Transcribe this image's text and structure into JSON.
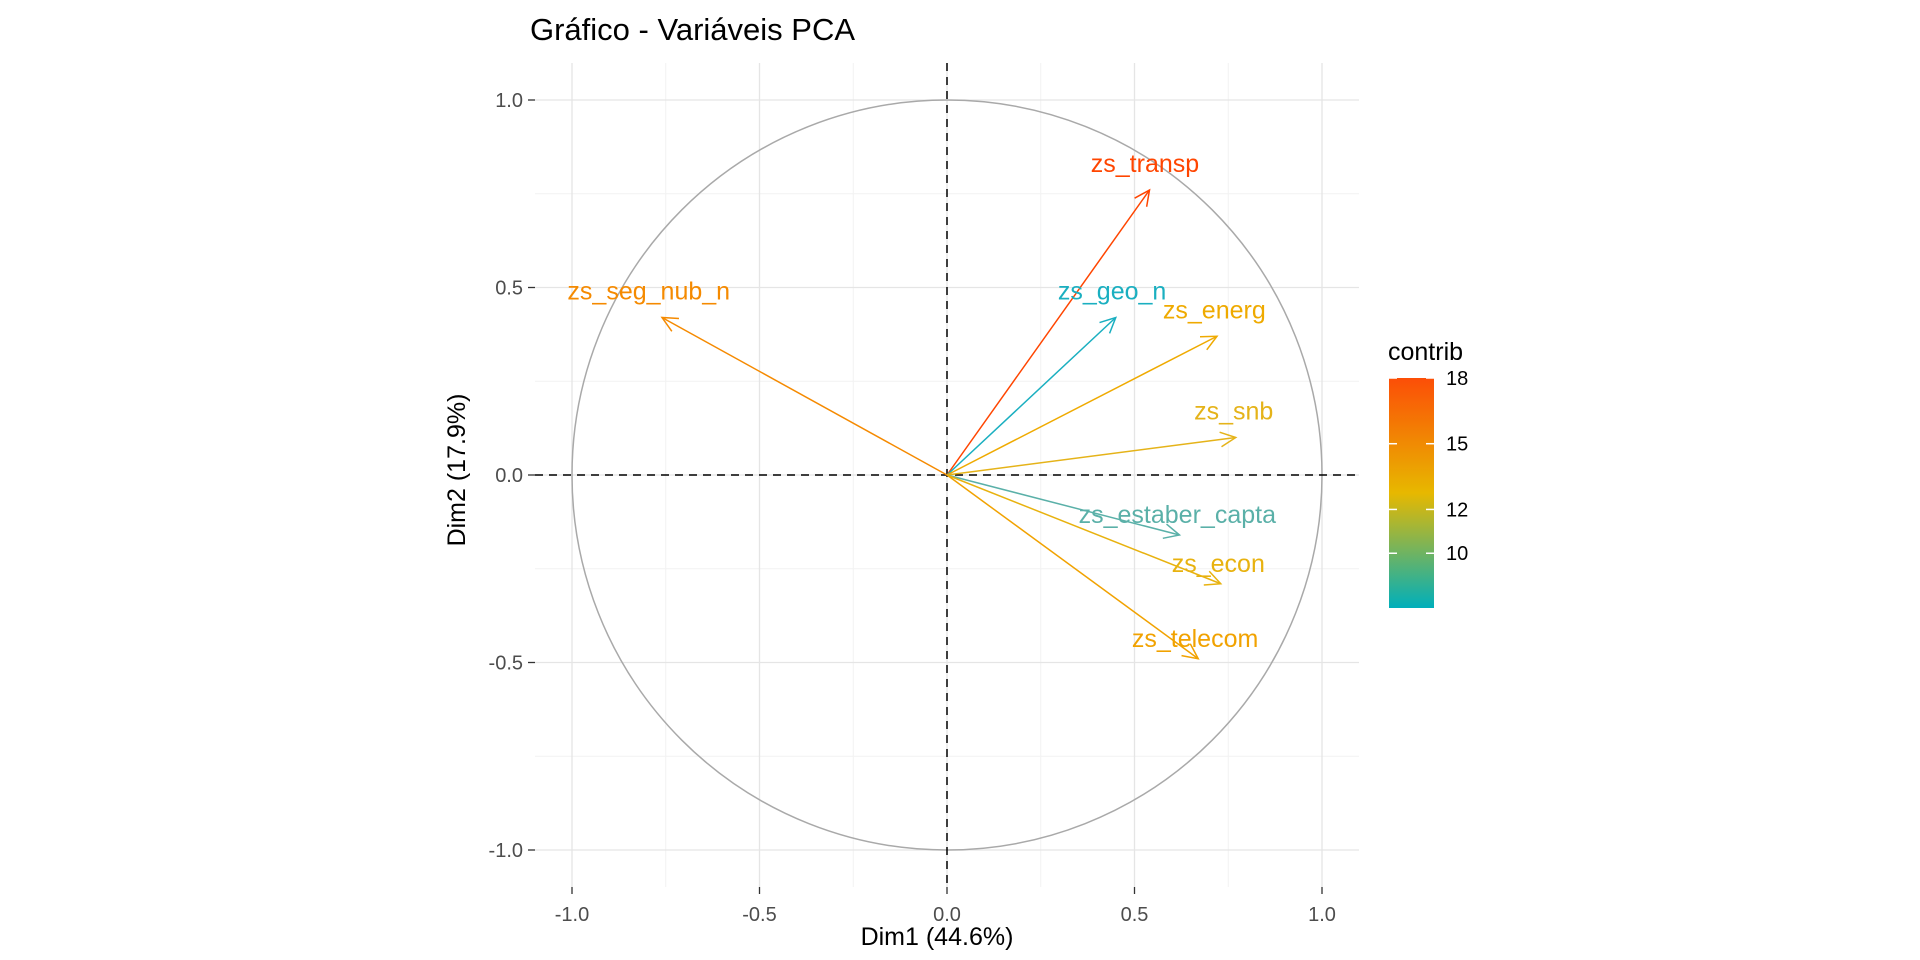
{
  "chart_data": {
    "type": "scatter",
    "title": "Gráfico - Variáveis PCA",
    "xlabel": "Dim1 (44.6%)",
    "ylabel": "Dim2 (17.9%)",
    "xlim": [
      -1.1,
      1.1
    ],
    "ylim": [
      -1.1,
      1.1
    ],
    "xticks": [
      -1.0,
      -0.5,
      0.0,
      0.5,
      1.0
    ],
    "yticks": [
      -1.0,
      -0.5,
      0.0,
      0.5,
      1.0
    ],
    "xtick_labels": [
      "-1.0",
      "-0.5",
      "0.0",
      "0.5",
      "1.0"
    ],
    "ytick_labels": [
      "-1.0",
      "-0.5",
      "0.0",
      "0.5",
      "1.0"
    ],
    "grid": true,
    "unit_circle": true,
    "variables": [
      {
        "name": "zs_transp",
        "x": 0.54,
        "y": 0.76,
        "contrib": 18.0,
        "color": "#FF4500"
      },
      {
        "name": "zs_seg_nub_n",
        "x": -0.76,
        "y": 0.42,
        "contrib": 15.5,
        "color": "#F58A00"
      },
      {
        "name": "zs_geo_n",
        "x": 0.45,
        "y": 0.42,
        "contrib": 8.2,
        "color": "#1AAFC0"
      },
      {
        "name": "zs_energ",
        "x": 0.72,
        "y": 0.37,
        "contrib": 13.6,
        "color": "#EFAA00"
      },
      {
        "name": "zs_snb",
        "x": 0.77,
        "y": 0.1,
        "contrib": 12.2,
        "color": "#E5B319"
      },
      {
        "name": "zs_estaber_capta",
        "x": 0.62,
        "y": -0.16,
        "contrib": 9.2,
        "color": "#5AB0A8"
      },
      {
        "name": "zs_econ",
        "x": 0.73,
        "y": -0.29,
        "contrib": 12.5,
        "color": "#E8B20F"
      },
      {
        "name": "zs_telecom",
        "x": 0.67,
        "y": -0.49,
        "contrib": 14.1,
        "color": "#F1A200"
      }
    ],
    "legend": {
      "title": "contrib",
      "position": "right",
      "ticks": [
        "18",
        "15",
        "12",
        "10"
      ],
      "tick_values": [
        18,
        15,
        12,
        10
      ],
      "range": [
        7.5,
        18.0
      ],
      "gradient": [
        "#00AFBB",
        "#E7B800",
        "#FC4E07"
      ]
    }
  }
}
